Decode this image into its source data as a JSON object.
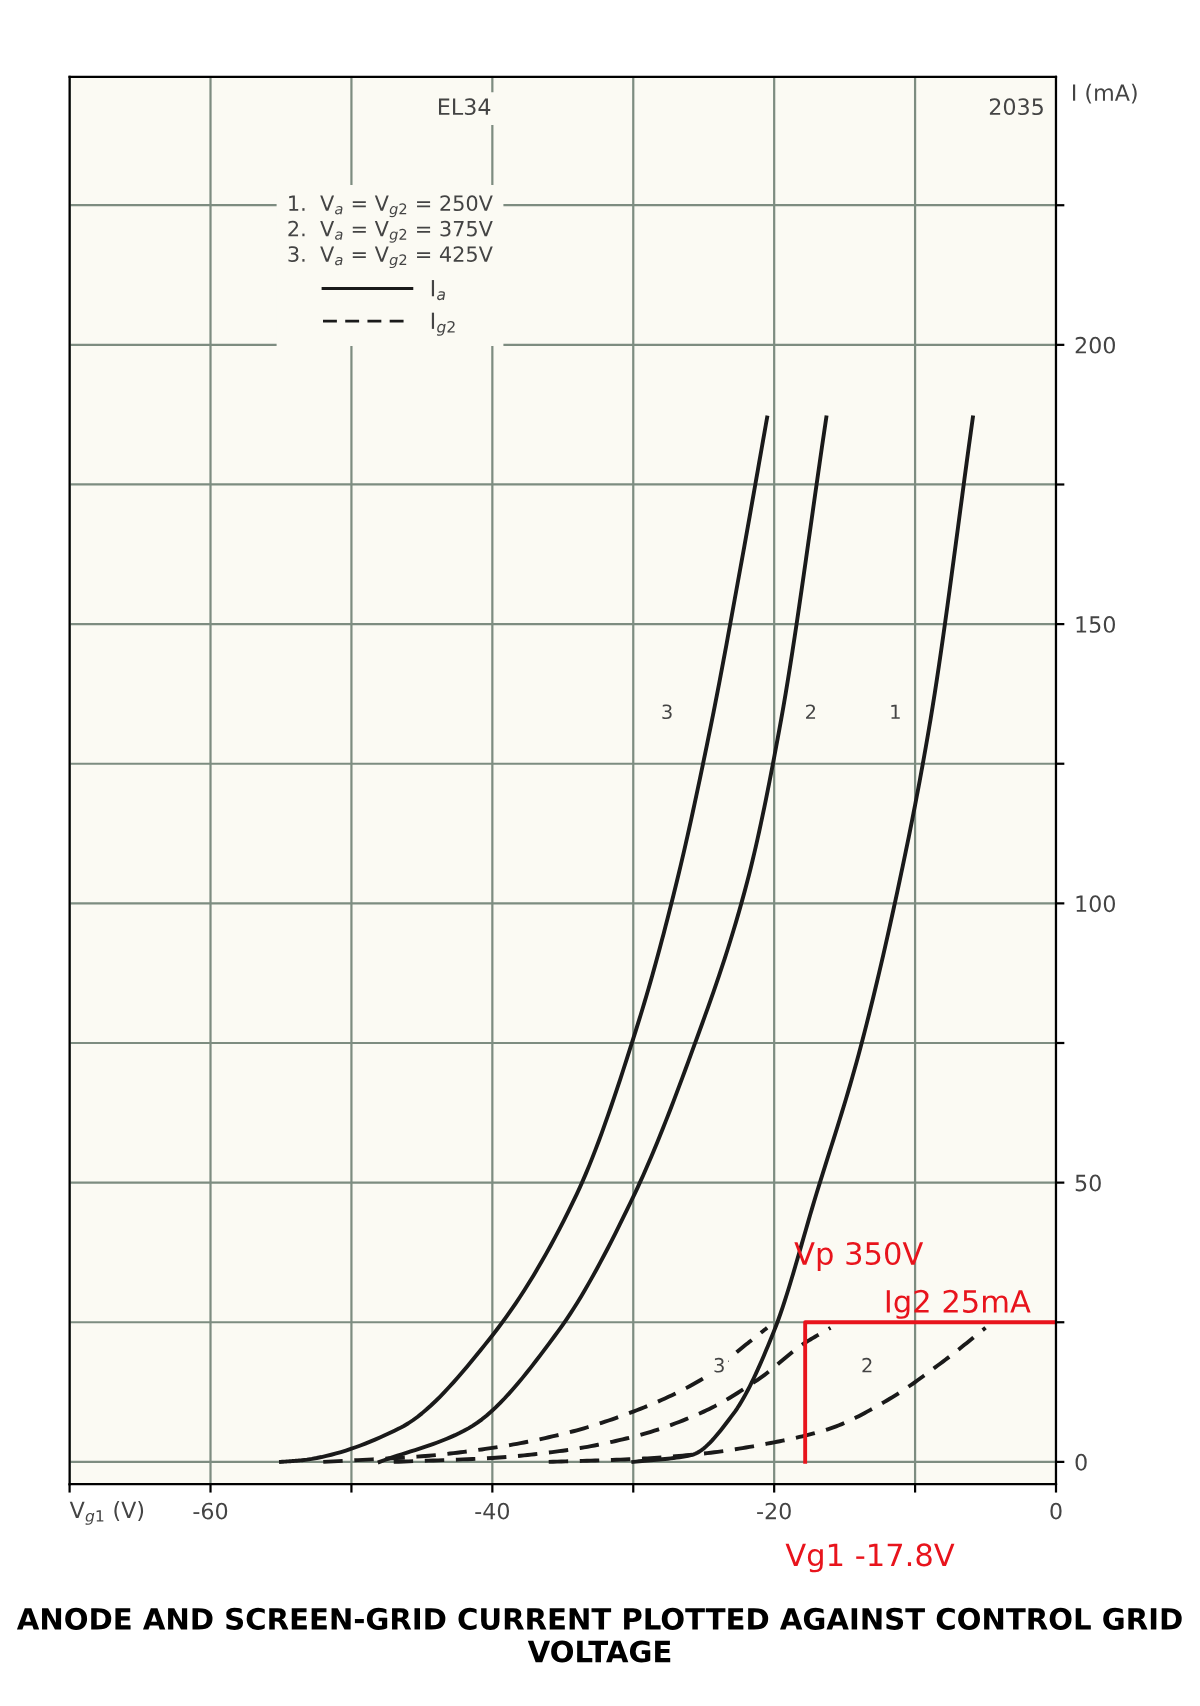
{
  "chart_data": {
    "type": "line",
    "title": "ANODE AND SCREEN-GRID CURRENT PLOTTED AGAINST CONTROL GRID VOLTAGE",
    "xlabel": "V$_{g1}$ (V)",
    "ylabel": "I (mA)",
    "legend_title": "1.  V$_{a}$ = V$_{g2}$ = 250V\n2.  V$_{a}$ = V$_{g2}$ = 375V\n3.  V$_{a}$ = V$_{g2}$ = 425V",
    "grid": true,
    "xlim": [
      -70,
      0
    ],
    "ylim": [
      -4,
      248
    ],
    "xticks": [
      {
        "value": -70,
        "label": null
      },
      -60,
      {
        "value": -50,
        "label": null
      },
      -40,
      {
        "value": -30,
        "label": null
      },
      -20,
      {
        "value": -10,
        "label": null
      },
      0
    ],
    "yticks": [
      0,
      {
        "value": 25,
        "label": null
      },
      50,
      {
        "value": 75,
        "label": null
      },
      100,
      {
        "value": 125,
        "label": null
      },
      150,
      {
        "value": 175,
        "label": null
      },
      200,
      {
        "value": 225,
        "label": null
      }
    ],
    "series": [
      {
        "color": "#1a1a1a",
        "line_style": "solid",
        "x": [
          -30,
          -25.9,
          -22.9,
          -20,
          -17,
          -14,
          -11.1,
          -8.9,
          -5.9
        ],
        "values": [
          0,
          1.2,
          8.6,
          23.5,
          48,
          73,
          104,
          133,
          187
        ]
      },
      {
        "color": "#1a1a1a",
        "line_style": "solid",
        "x": [
          -48,
          -41.7,
          -35.3,
          -29.9,
          -25.9,
          -21.9,
          -19.5,
          -16.3
        ],
        "values": [
          0,
          6,
          23.5,
          48,
          73,
          104,
          133,
          187
        ]
      },
      {
        "color": "#1a1a1a",
        "line_style": "solid",
        "x": [
          -55,
          -53.5,
          -46.6,
          -40.2,
          -34,
          -29.6,
          -26.9,
          -24.4,
          -22.4,
          -20.5
        ],
        "values": [
          0,
          0.3,
          6,
          22,
          48,
          79,
          104,
          133,
          160,
          187
        ]
      },
      {
        "color": "#1a1a1a",
        "line_style": "dashed",
        "x": [
          -36,
          -30,
          -25,
          -20,
          -16,
          -12,
          -8,
          -5
        ],
        "values": [
          0,
          0.5,
          1.5,
          3.5,
          6,
          11,
          18,
          24
        ]
      },
      {
        "color": "#1a1a1a",
        "line_style": "dashed",
        "x": [
          -47,
          -40,
          -35,
          -30,
          -25,
          -21,
          -18,
          -16
        ],
        "values": [
          0,
          0.7,
          2,
          4.5,
          9,
          15,
          21,
          24
        ]
      },
      {
        "color": "#1a1a1a",
        "line_style": "dashed",
        "x": [
          -52,
          -45,
          -40,
          -35,
          -30,
          -25,
          -22,
          -20.5
        ],
        "values": [
          0,
          1,
          2.5,
          5,
          9,
          15,
          21,
          24
        ]
      },
      {
        "color": "#e8141c",
        "line_style": "solid",
        "x": [
          -17.8,
          -17.8,
          0
        ],
        "values": [
          0,
          25,
          25
        ]
      }
    ],
    "annotations": [
      "EL34",
      "2035",
      "I$_{a}$",
      "I$_{g2}$",
      {
        "text": "3",
        "x": -27.6,
        "y": 134
      },
      {
        "text": "2",
        "x": -17.4,
        "y": 134
      },
      {
        "text": "1",
        "x": -11.4,
        "y": 134
      },
      {
        "text": "3",
        "x": -23.9,
        "y": 17
      },
      {
        "text": "2",
        "x": -13.4,
        "y": 17
      },
      "Vp 350V",
      "Ig2 25mA",
      "Vg1 -17.8V"
    ]
  }
}
